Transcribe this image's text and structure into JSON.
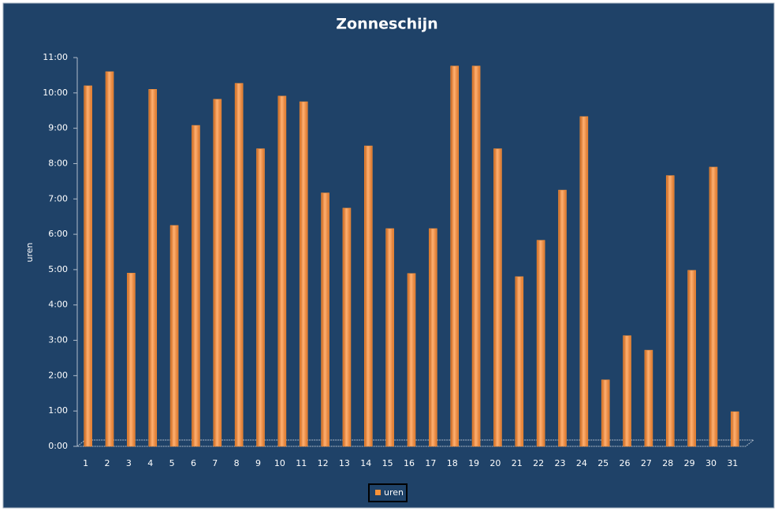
{
  "chart_data": {
    "type": "bar",
    "title": "Zonneschijn",
    "y_label": "uren",
    "categories": [
      "1",
      "2",
      "3",
      "4",
      "5",
      "6",
      "7",
      "8",
      "9",
      "10",
      "11",
      "12",
      "13",
      "14",
      "15",
      "16",
      "17",
      "18",
      "19",
      "20",
      "21",
      "22",
      "23",
      "24",
      "25",
      "26",
      "27",
      "28",
      "29",
      "30",
      "31"
    ],
    "series": [
      {
        "name": "uren",
        "color": "#f7923a",
        "values": [
          10.2,
          10.6,
          4.9,
          10.1,
          6.25,
          9.08,
          9.82,
          10.27,
          8.42,
          9.91,
          9.75,
          7.17,
          6.74,
          8.5,
          6.16,
          4.89,
          6.16,
          10.76,
          10.76,
          8.42,
          4.8,
          5.83,
          7.25,
          9.33,
          1.88,
          3.13,
          2.72,
          7.66,
          4.98,
          7.9,
          0.98
        ]
      }
    ],
    "ylim": [
      0,
      11
    ],
    "yticks": [
      {
        "value": 0,
        "label": "0:00"
      },
      {
        "value": 1,
        "label": "1:00"
      },
      {
        "value": 2,
        "label": "2:00"
      },
      {
        "value": 3,
        "label": "3:00"
      },
      {
        "value": 4,
        "label": "4:00"
      },
      {
        "value": 5,
        "label": "5:00"
      },
      {
        "value": 6,
        "label": "6:00"
      },
      {
        "value": 7,
        "label": "7:00"
      },
      {
        "value": 8,
        "label": "8:00"
      },
      {
        "value": 9,
        "label": "9:00"
      },
      {
        "value": 10,
        "label": "10:00"
      },
      {
        "value": 11,
        "label": "11:00"
      }
    ],
    "legend": "bottom"
  }
}
